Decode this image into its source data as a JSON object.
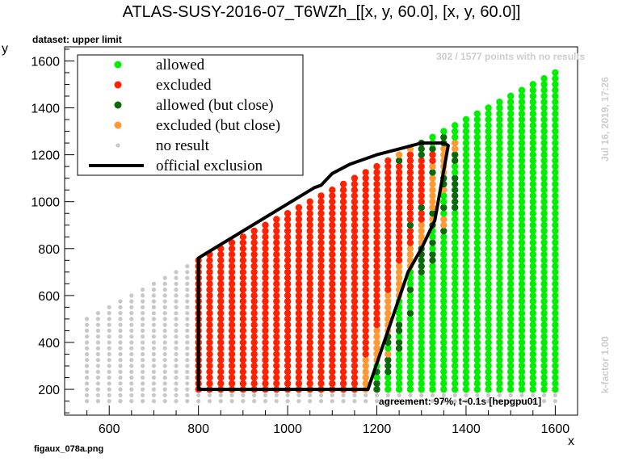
{
  "chart_data": {
    "type": "scatter",
    "title": "ATLAS-SUSY-2016-07_T6WZh_[[x, y, 60.0], [x, y, 60.0]]",
    "xlabel": "x",
    "ylabel": "y",
    "xlim": [
      500,
      1650
    ],
    "ylim": [
      90,
      1660
    ],
    "xticks": [
      600,
      800,
      1000,
      1200,
      1400,
      1600
    ],
    "yticks": [
      200,
      400,
      600,
      800,
      1000,
      1200,
      1400,
      1600
    ],
    "grid": false,
    "legend_position": "top-left",
    "legend": [
      {
        "label": "allowed",
        "color": "#00ee00",
        "marker": "dot"
      },
      {
        "label": "excluded",
        "color": "#ff2200",
        "marker": "dot"
      },
      {
        "label": "allowed (but close)",
        "color": "#0a6a0a",
        "marker": "dot"
      },
      {
        "label": "excluded (but close)",
        "color": "#ff9933",
        "marker": "dot"
      },
      {
        "label": "no result",
        "color": "#c8c8c8",
        "marker": "small-dot"
      },
      {
        "label": "official exclusion",
        "color": "#000000",
        "marker": "line"
      }
    ],
    "grid_points": {
      "x_start": 550,
      "x_step": 25,
      "x_end": 1600,
      "y_start": 150,
      "y_step": 25,
      "y_max_rule": "y <= x - 35"
    },
    "official_exclusion": {
      "x": [
        800,
        800,
        1060,
        1075,
        1100,
        1140,
        1200,
        1260,
        1300,
        1330,
        1350,
        1360,
        1330,
        1300,
        1270,
        1180,
        800
      ],
      "y": [
        200,
        760,
        1060,
        1070,
        1120,
        1160,
        1200,
        1230,
        1250,
        1250,
        1250,
        1240,
        920,
        800,
        700,
        200,
        200
      ]
    }
  },
  "annotations": {
    "dataset": "dataset: upper limit",
    "no_results": "302 / 1577 points with no results",
    "date": "Jul 16, 2019, 17:26",
    "kfactor": "k-factor 1.00",
    "agreement": "agreement: 97%, t~0.1s [hepgpu01]",
    "filename": "figaux_078a.png"
  }
}
